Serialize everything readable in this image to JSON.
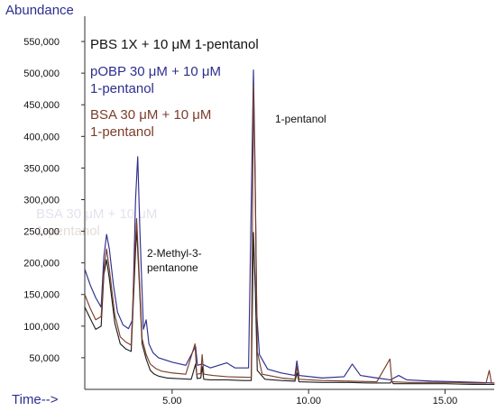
{
  "chart_data": {
    "type": "line",
    "title": "",
    "subtitle": "",
    "xlabel": "Time-->",
    "ylabel": "Abundance",
    "xlim": [
      1.8,
      16.8
    ],
    "ylim": [
      0,
      590000
    ],
    "x_ticks": [
      {
        "value": 5.0,
        "label": "5.00"
      },
      {
        "value": 10.0,
        "label": "10.00"
      },
      {
        "value": 15.0,
        "label": "15.00"
      }
    ],
    "y_ticks": [
      {
        "value": 50000,
        "label": "50,000"
      },
      {
        "value": 100000,
        "label": "100,000"
      },
      {
        "value": 150000,
        "label": "150,000"
      },
      {
        "value": 200000,
        "label": "200,000"
      },
      {
        "value": 250000,
        "label": "250,000"
      },
      {
        "value": 300000,
        "label": "300,000"
      },
      {
        "value": 350000,
        "label": "350,000"
      },
      {
        "value": 400000,
        "label": "400,000"
      },
      {
        "value": 450000,
        "label": "450,000"
      },
      {
        "value": 500000,
        "label": "500,000"
      },
      {
        "value": 550000,
        "label": "550,000"
      }
    ],
    "grid": false,
    "legend_position": "top-left",
    "legend": [
      {
        "series_index": 0,
        "lines": [
          "PBS 1X + 10 μM 1-pentanol"
        ]
      },
      {
        "series_index": 1,
        "lines": [
          "pOBP 30 μM + 10 μM",
          "1-pentanol"
        ]
      },
      {
        "series_index": 2,
        "lines": [
          "BSA 30 μM + 10 μM",
          "1-pentanol"
        ]
      }
    ],
    "faded_legend_text": [
      "BSA 30 μM + 10 μM",
      "1-pentanol"
    ],
    "annotations": [
      {
        "lines": [
          "1-pentanol"
        ],
        "x": 8.15,
        "y": 470000
      },
      {
        "lines": [
          "2-Methyl-3-",
          "pentanone"
        ],
        "x": 4.2,
        "y": 240000
      }
    ],
    "series": [
      {
        "name": "PBS 1X + 10 μM 1-pentanol",
        "color": "#202020",
        "points": [
          [
            1.8,
            130000
          ],
          [
            2.0,
            112000
          ],
          [
            2.2,
            95000
          ],
          [
            2.4,
            100000
          ],
          [
            2.5,
            182000
          ],
          [
            2.6,
            205000
          ],
          [
            2.7,
            175000
          ],
          [
            2.9,
            105000
          ],
          [
            3.1,
            72000
          ],
          [
            3.3,
            64000
          ],
          [
            3.5,
            60000
          ],
          [
            3.62,
            180000
          ],
          [
            3.7,
            255000
          ],
          [
            3.78,
            185000
          ],
          [
            3.9,
            72000
          ],
          [
            4.05,
            48000
          ],
          [
            4.2,
            30000
          ],
          [
            4.35,
            24000
          ],
          [
            4.5,
            21000
          ],
          [
            4.8,
            18000
          ],
          [
            5.2,
            17000
          ],
          [
            5.7,
            16000
          ],
          [
            5.86,
            40000
          ],
          [
            5.92,
            17000
          ],
          [
            6.05,
            18000
          ],
          [
            6.1,
            36000
          ],
          [
            6.16,
            16000
          ],
          [
            6.4,
            15000
          ],
          [
            7.0,
            15000
          ],
          [
            7.6,
            14000
          ],
          [
            7.9,
            14000
          ],
          [
            7.98,
            248000
          ],
          [
            8.05,
            155000
          ],
          [
            8.12,
            30000
          ],
          [
            8.4,
            16000
          ],
          [
            9.0,
            14000
          ],
          [
            9.5,
            13000
          ],
          [
            9.58,
            26000
          ],
          [
            9.65,
            12000
          ],
          [
            10.5,
            11000
          ],
          [
            11.5,
            11000
          ],
          [
            12.2,
            10000
          ],
          [
            13.0,
            10000
          ],
          [
            13.05,
            14000
          ],
          [
            13.1,
            9000
          ],
          [
            14.0,
            9000
          ],
          [
            15.0,
            9000
          ],
          [
            16.0,
            8000
          ],
          [
            16.8,
            8000
          ]
        ]
      },
      {
        "name": "pOBP 30 μM + 10 μM 1-pentanol",
        "color": "#2e2e8f",
        "points": [
          [
            1.8,
            190000
          ],
          [
            2.0,
            165000
          ],
          [
            2.2,
            145000
          ],
          [
            2.4,
            130000
          ],
          [
            2.5,
            210000
          ],
          [
            2.6,
            245000
          ],
          [
            2.7,
            222000
          ],
          [
            2.85,
            165000
          ],
          [
            3.0,
            122000
          ],
          [
            3.2,
            102000
          ],
          [
            3.4,
            96000
          ],
          [
            3.55,
            110000
          ],
          [
            3.66,
            300000
          ],
          [
            3.74,
            368000
          ],
          [
            3.82,
            250000
          ],
          [
            3.95,
            95000
          ],
          [
            4.05,
            110000
          ],
          [
            4.15,
            72000
          ],
          [
            4.3,
            58000
          ],
          [
            4.5,
            50000
          ],
          [
            5.0,
            43000
          ],
          [
            5.5,
            38000
          ],
          [
            5.86,
            68000
          ],
          [
            5.93,
            38000
          ],
          [
            6.1,
            40000
          ],
          [
            6.4,
            34000
          ],
          [
            7.0,
            42000
          ],
          [
            7.3,
            34000
          ],
          [
            7.8,
            34000
          ],
          [
            7.98,
            505000
          ],
          [
            8.04,
            350000
          ],
          [
            8.1,
            120000
          ],
          [
            8.2,
            55000
          ],
          [
            8.5,
            32000
          ],
          [
            9.0,
            26000
          ],
          [
            9.5,
            22000
          ],
          [
            9.57,
            45000
          ],
          [
            9.65,
            22000
          ],
          [
            10.5,
            18000
          ],
          [
            11.3,
            20000
          ],
          [
            11.6,
            40000
          ],
          [
            11.9,
            22000
          ],
          [
            12.5,
            18000
          ],
          [
            13.0,
            15000
          ],
          [
            13.3,
            22000
          ],
          [
            13.6,
            15000
          ],
          [
            14.5,
            13000
          ],
          [
            15.5,
            12000
          ],
          [
            16.3,
            11000
          ],
          [
            16.8,
            10000
          ]
        ]
      },
      {
        "name": "BSA 30 μM + 10 μM 1-pentanol",
        "color": "#7a3e2a",
        "points": [
          [
            1.8,
            150000
          ],
          [
            2.0,
            128000
          ],
          [
            2.2,
            110000
          ],
          [
            2.4,
            115000
          ],
          [
            2.5,
            190000
          ],
          [
            2.6,
            222000
          ],
          [
            2.7,
            190000
          ],
          [
            2.9,
            118000
          ],
          [
            3.1,
            83000
          ],
          [
            3.3,
            75000
          ],
          [
            3.5,
            70000
          ],
          [
            3.62,
            200000
          ],
          [
            3.7,
            270000
          ],
          [
            3.78,
            195000
          ],
          [
            3.9,
            80000
          ],
          [
            4.05,
            55000
          ],
          [
            4.2,
            40000
          ],
          [
            4.4,
            33000
          ],
          [
            4.6,
            29000
          ],
          [
            5.0,
            26000
          ],
          [
            5.5,
            24000
          ],
          [
            5.84,
            72000
          ],
          [
            5.9,
            24000
          ],
          [
            6.05,
            25000
          ],
          [
            6.1,
            55000
          ],
          [
            6.16,
            24000
          ],
          [
            6.5,
            22000
          ],
          [
            7.0,
            20000
          ],
          [
            7.9,
            19000
          ],
          [
            7.98,
            480000
          ],
          [
            8.05,
            300000
          ],
          [
            8.12,
            60000
          ],
          [
            8.3,
            24000
          ],
          [
            9.0,
            18000
          ],
          [
            9.5,
            16000
          ],
          [
            9.57,
            36000
          ],
          [
            9.65,
            16000
          ],
          [
            10.5,
            14000
          ],
          [
            11.5,
            13000
          ],
          [
            12.5,
            12000
          ],
          [
            12.98,
            48000
          ],
          [
            13.05,
            12000
          ],
          [
            13.7,
            11000
          ],
          [
            14.5,
            11000
          ],
          [
            15.4,
            11000
          ],
          [
            16.0,
            10000
          ],
          [
            16.5,
            10000
          ],
          [
            16.62,
            30000
          ],
          [
            16.7,
            10000
          ],
          [
            16.8,
            10000
          ]
        ]
      }
    ]
  }
}
